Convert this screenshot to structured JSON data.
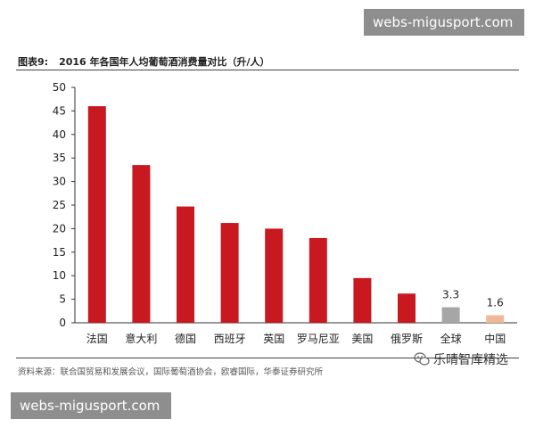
{
  "watermark": {
    "text": "webs-migusport.com"
  },
  "figure": {
    "label": "图表9:",
    "title": "2016 年各国年人均葡萄酒消费量对比（升/人）"
  },
  "source": "资料来源：联合国贸易和发展会议，国际葡萄酒协会，欧睿国际，华泰证券研究所",
  "brand": {
    "text": "乐晴智库精选",
    "icon": "wechat-icon"
  },
  "colors": {
    "primary": "#c81820",
    "world": "#a6a6a6",
    "china": "#f0b897"
  },
  "chart_data": {
    "type": "bar",
    "title": "2016 年各国年人均葡萄酒消费量对比（升/人）",
    "categories": [
      "法国",
      "意大利",
      "德国",
      "西班牙",
      "英国",
      "罗马尼亚",
      "美国",
      "俄罗斯",
      "全球",
      "中国"
    ],
    "values": [
      46,
      33.5,
      24.7,
      21.2,
      20,
      18,
      9.5,
      6.2,
      3.3,
      1.6
    ],
    "data_labels": [
      "",
      "",
      "",
      "",
      "",
      "",
      "",
      "",
      "3.3",
      "1.6"
    ],
    "ylim": [
      0,
      50
    ],
    "yticks": [
      0,
      5,
      10,
      15,
      20,
      25,
      30,
      35,
      40,
      45,
      50
    ],
    "grid": false,
    "legend": "none"
  }
}
